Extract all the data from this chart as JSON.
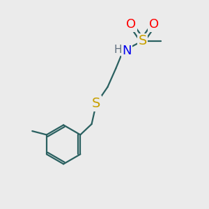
{
  "background_color": "#ebebeb",
  "atom_colors": {
    "S": "#c8a000",
    "O": "#ff0000",
    "N": "#0000ee",
    "H": "#607080",
    "C": "#2a6060",
    "bond": "#2a6060"
  },
  "bond_lw": 1.6,
  "font_size_main": 13,
  "font_size_small": 11
}
